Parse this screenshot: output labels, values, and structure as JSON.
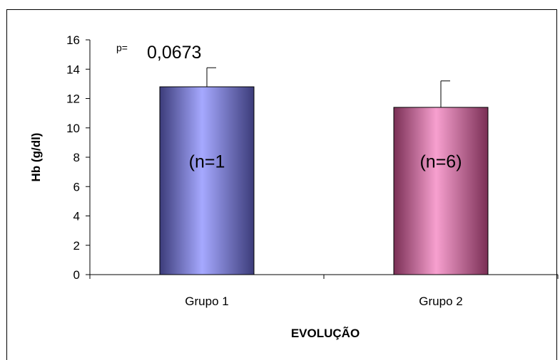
{
  "chart_data": {
    "type": "bar",
    "categories": [
      "Grupo 1",
      "Grupo 2"
    ],
    "values": [
      12.8,
      11.4
    ],
    "error_upper": [
      14.1,
      13.2
    ],
    "bar_labels": [
      "(n=1",
      "(n=6)"
    ],
    "colors": [
      "#8a8ef0",
      "#e98fc0"
    ],
    "ylabel": "Hb (g/dl)",
    "xlabel": "EVOLUÇÃO",
    "ylim": [
      0,
      16
    ],
    "yticks": [
      "0",
      "2",
      "4",
      "6",
      "8",
      "10",
      "12",
      "14",
      "16"
    ],
    "annotation": {
      "prefix": "p=",
      "value": "0,0673"
    },
    "grid": false,
    "legend": "none"
  }
}
